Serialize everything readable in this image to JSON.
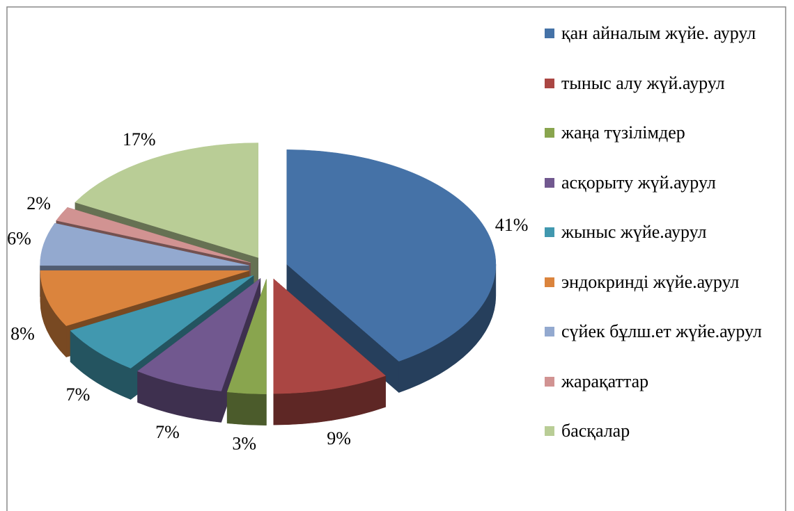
{
  "chart_data": {
    "type": "pie",
    "categories": [
      "қан айналым жүйе. аурул",
      "тыныс алу жүй.аурул",
      "жаңа түзілімдер",
      "асқорыту жүй.аурул",
      "жыныс жүйе.аурул",
      "эндокринді жүйе.аурул",
      "сүйек бұлш.ет жүйе.аурул",
      "жарақаттар",
      "басқалар"
    ],
    "values": [
      41,
      9,
      3,
      7,
      7,
      8,
      6,
      2,
      17
    ],
    "value_labels": [
      "41%",
      "9%",
      "3%",
      "7%",
      "7%",
      "8%",
      "6%",
      "2%",
      "17%"
    ],
    "colors": [
      "#4572a7",
      "#aa4643",
      "#89a54e",
      "#71588f",
      "#4198af",
      "#db843d",
      "#93a9cf",
      "#d19392",
      "#b9cd96"
    ],
    "legend": "right"
  }
}
